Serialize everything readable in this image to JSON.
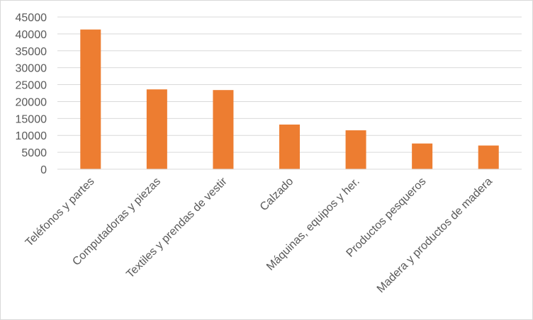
{
  "chart_data": {
    "type": "bar",
    "title": "",
    "xlabel": "",
    "ylabel": "",
    "categories": [
      "Teléfonos y partes",
      "Computadoras y piezas",
      "Textiles y prendas de vestir",
      "Calzado",
      "Máquinas, equipos y her.",
      "Productos pesqueros",
      "Madera y productos de madera"
    ],
    "values": [
      41300,
      23600,
      23400,
      13200,
      11500,
      7600,
      7000
    ],
    "ylim": [
      0,
      45000
    ],
    "yticks": [
      "0",
      "5000",
      "10000",
      "15000",
      "20000",
      "25000",
      "30000",
      "35000",
      "40000",
      "45000"
    ],
    "grid": true,
    "legend": "none",
    "bar_color": "#ED7D31",
    "grid_color": "#D9D9D9",
    "axis_color": "#D9D9D9"
  }
}
